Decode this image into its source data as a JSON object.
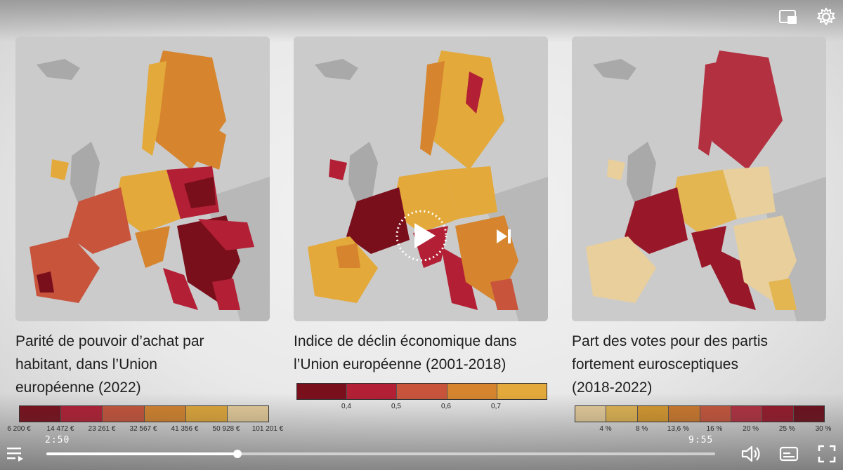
{
  "player": {
    "current_time": "2:50",
    "duration": "9:55",
    "progress": 0.2857
  },
  "panels": [
    {
      "title_lines": [
        "Parité de pouvoir d’achat par",
        "habitant, dans l’Union",
        "européenne  (2022)"
      ],
      "legend_colors": [
        "#7a0f1c",
        "#b31f35",
        "#c8543c",
        "#d6852e",
        "#e3a93a",
        "#e8cf9c"
      ],
      "legend_labels": [
        "6 200 €",
        "14 472 €",
        "23 261 €",
        "32 567 €",
        "41 356 €",
        "50 928 €",
        "101 201 €"
      ]
    },
    {
      "title_lines": [
        "Indice de déclin économique dans",
        "l’Union européenne (2001-2018)"
      ],
      "legend_colors": [
        "#7a0f1c",
        "#b31f35",
        "#c8543c",
        "#d6852e",
        "#e3a93a"
      ],
      "legend_labels": [
        "0,4",
        "0,5",
        "0,6",
        "0,7"
      ]
    },
    {
      "title_lines": [
        "Part des votes pour des partis",
        "fortement eurosceptiques",
        "(2018-2022)"
      ],
      "legend_colors": [
        "#e8cf9c",
        "#e3b652",
        "#d99a2e",
        "#cf7a2c",
        "#c9563c",
        "#b33040",
        "#98182a",
        "#6e0f1c"
      ],
      "legend_labels": [
        "4 %",
        "8 %",
        "13,6 %",
        "16 %",
        "20 %",
        "25 %",
        "30 %"
      ]
    }
  ]
}
